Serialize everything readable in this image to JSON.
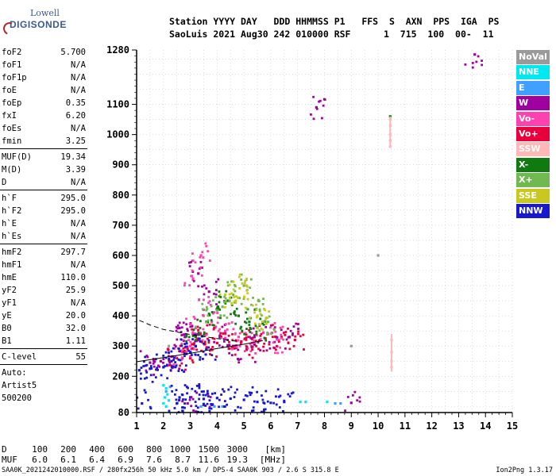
{
  "logo": {
    "line1": "Lowell",
    "line2": "DIGISONDE"
  },
  "header": {
    "line1": "Station YYYY DAY   DDD HHMMSS P1   FFS  S  AXN  PPS  IGA  PS",
    "line2": "SaoLuis 2021 Aug30 242 010000 RSF      1  715  100  00-  11"
  },
  "parameters": {
    "groups": [
      [
        {
          "name": "foF2",
          "value": "5.700"
        },
        {
          "name": "foF1",
          "value": "N/A"
        },
        {
          "name": "foF1p",
          "value": "N/A"
        },
        {
          "name": "foE",
          "value": "N/A"
        },
        {
          "name": "foEp",
          "value": "0.35"
        },
        {
          "name": "fxI",
          "value": "6.20"
        },
        {
          "name": "foEs",
          "value": "N/A"
        },
        {
          "name": "fmin",
          "value": "3.25"
        }
      ],
      [
        {
          "name": "MUF(D)",
          "value": "19.34"
        },
        {
          "name": "M(D)",
          "value": "3.39"
        },
        {
          "name": "D",
          "value": "N/A"
        }
      ],
      [
        {
          "name": "h`F",
          "value": "295.0"
        },
        {
          "name": "h`F2",
          "value": "295.0"
        },
        {
          "name": "h`E",
          "value": "N/A"
        },
        {
          "name": "h`Es",
          "value": "N/A"
        }
      ],
      [
        {
          "name": "hmF2",
          "value": "297.7"
        },
        {
          "name": "hmF1",
          "value": "N/A"
        },
        {
          "name": "hmE",
          "value": "110.0"
        },
        {
          "name": "yF2",
          "value": "25.9"
        },
        {
          "name": "yF1",
          "value": "N/A"
        },
        {
          "name": "yE",
          "value": "20.0"
        },
        {
          "name": "B0",
          "value": "32.0"
        },
        {
          "name": "B1",
          "value": "1.11"
        }
      ],
      [
        {
          "name": "C-level",
          "value": "55"
        }
      ]
    ],
    "notes": [
      "Auto:",
      "Artist5",
      "500200"
    ]
  },
  "legend": [
    {
      "label": "NoVal",
      "color": "#9a9a9a"
    },
    {
      "label": "NNE",
      "color": "#00e8f0"
    },
    {
      "label": "E",
      "color": "#40a0ff"
    },
    {
      "label": "W",
      "color": "#a000a0"
    },
    {
      "label": "Vo-",
      "color": "#ff40b0"
    },
    {
      "label": "Vo+",
      "color": "#e8003c"
    },
    {
      "label": "SSW",
      "color": "#ffb8b8"
    },
    {
      "label": "X-",
      "color": "#107a10"
    },
    {
      "label": "X+",
      "color": "#70b850"
    },
    {
      "label": "SSE",
      "color": "#c8c820"
    },
    {
      "label": "NNW",
      "color": "#1818d0"
    }
  ],
  "muf_table": {
    "d_label": "D",
    "muf_label": "MUF",
    "distances": [
      "100",
      "200",
      "400",
      "600",
      "800",
      "1000",
      "1500",
      "3000"
    ],
    "d_unit": "[km]",
    "mufs": [
      "6.0",
      "6.1",
      "6.4",
      "6.9",
      "7.6",
      "8.7",
      "11.6",
      "19.3"
    ],
    "muf_unit": "[MHz]"
  },
  "footer": {
    "left": "SAA0K_2021242010000.RSF / 280fx256h 50 kHz 5.0 km / DPS-4 SAA0K 903 / 2.6 S 315.8 E",
    "right": "Ion2Png 1.3.17"
  },
  "chart_data": {
    "type": "scatter",
    "title": "",
    "xlabel": "",
    "ylabel": "",
    "xlim": [
      1,
      15
    ],
    "ylim": [
      80,
      1280
    ],
    "x_ticks": [
      "1",
      "2",
      "3",
      "4",
      "5",
      "6",
      "7",
      "8",
      "9",
      "10",
      "11",
      "12",
      "13",
      "14",
      "15"
    ],
    "y_ticks": [
      "80",
      "200",
      "300",
      "400",
      "500",
      "600",
      "700",
      "800",
      "900",
      "1000",
      "1100",
      "1280"
    ],
    "grid": true,
    "series": [
      {
        "name": "NNE",
        "color": "#00e8f0",
        "points": [
          [
            2.0,
            110
          ],
          [
            2.05,
            130
          ],
          [
            2.1,
            160
          ],
          [
            2.0,
            170
          ],
          [
            2.15,
            140
          ],
          [
            2.2,
            120
          ],
          [
            2.1,
            100
          ],
          [
            7.1,
            115
          ],
          [
            7.3,
            115
          ],
          [
            8.1,
            115
          ]
        ]
      },
      {
        "name": "E",
        "color": "#40a0ff",
        "points": [
          [
            2.1,
            150
          ],
          [
            2.25,
            165
          ],
          [
            3.4,
            100
          ],
          [
            3.9,
            100
          ],
          [
            4.2,
            100
          ],
          [
            8.4,
            110
          ],
          [
            8.6,
            110
          ]
        ]
      },
      {
        "name": "W",
        "color": "#a000a0",
        "points": [
          [
            1.5,
            245
          ],
          [
            1.9,
            250
          ],
          [
            2.3,
            265
          ],
          [
            2.6,
            360
          ],
          [
            2.8,
            330
          ],
          [
            3.1,
            340
          ],
          [
            3.3,
            540
          ],
          [
            3.7,
            480
          ],
          [
            4.1,
            330
          ],
          [
            4.6,
            300
          ],
          [
            5.1,
            290
          ],
          [
            5.6,
            320
          ],
          [
            6.2,
            330
          ],
          [
            6.7,
            330
          ],
          [
            7.7,
            1090
          ],
          [
            13.6,
            1265
          ],
          [
            9.0,
            112
          ],
          [
            2.9,
            110
          ],
          [
            3.5,
            105
          ]
        ]
      },
      {
        "name": "Vo-",
        "color": "#ff40b0",
        "points": [
          [
            2.7,
            280
          ],
          [
            3.0,
            300
          ],
          [
            3.2,
            360
          ],
          [
            3.5,
            420
          ],
          [
            3.8,
            380
          ],
          [
            4.3,
            350
          ],
          [
            4.8,
            330
          ],
          [
            5.3,
            310
          ],
          [
            5.9,
            340
          ],
          [
            6.3,
            320
          ],
          [
            3.4,
            600
          ],
          [
            3.1,
            520
          ]
        ]
      },
      {
        "name": "Vo+",
        "color": "#e8003c",
        "points": [
          [
            2.5,
            260
          ],
          [
            2.9,
            290
          ],
          [
            3.3,
            320
          ],
          [
            3.6,
            340
          ],
          [
            4.0,
            310
          ],
          [
            4.4,
            300
          ],
          [
            4.9,
            315
          ],
          [
            5.4,
            305
          ],
          [
            5.8,
            325
          ],
          [
            6.4,
            330
          ],
          [
            6.9,
            320
          ]
        ]
      },
      {
        "name": "SSW",
        "color": "#ffb8b8",
        "points": [
          [
            10.45,
            980
          ],
          [
            10.45,
            1000
          ],
          [
            10.45,
            1030
          ],
          [
            10.45,
            1050
          ],
          [
            10.5,
            250
          ],
          [
            10.5,
            280
          ],
          [
            10.5,
            320
          ],
          [
            10.45,
            960
          ],
          [
            10.5,
            230
          ]
        ]
      },
      {
        "name": "X-",
        "color": "#107a10",
        "points": [
          [
            3.2,
            330
          ],
          [
            3.6,
            380
          ],
          [
            4.0,
            420
          ],
          [
            4.4,
            450
          ],
          [
            4.8,
            400
          ],
          [
            5.2,
            380
          ],
          [
            5.5,
            360
          ],
          [
            10.45,
            1060
          ]
        ]
      },
      {
        "name": "X+",
        "color": "#70b850",
        "points": [
          [
            3.5,
            400
          ],
          [
            4.2,
            430
          ],
          [
            4.6,
            470
          ],
          [
            5.0,
            500
          ],
          [
            5.4,
            420
          ],
          [
            5.9,
            380
          ]
        ]
      },
      {
        "name": "SSE",
        "color": "#c8c820",
        "points": [
          [
            4.3,
            470
          ],
          [
            4.8,
            460
          ],
          [
            5.1,
            500
          ],
          [
            5.5,
            400
          ],
          [
            5.7,
            380
          ]
        ]
      },
      {
        "name": "NNW",
        "color": "#1818d0",
        "points": [
          [
            1.1,
            220
          ],
          [
            1.5,
            225
          ],
          [
            2.0,
            230
          ],
          [
            2.3,
            250
          ],
          [
            2.7,
            260
          ],
          [
            3.0,
            280
          ],
          [
            3.2,
            300
          ],
          [
            3.6,
            290
          ],
          [
            2.6,
            130
          ],
          [
            3.0,
            130
          ],
          [
            3.5,
            125
          ],
          [
            4.0,
            128
          ],
          [
            4.5,
            126
          ],
          [
            5.0,
            122
          ],
          [
            5.5,
            115
          ],
          [
            6.0,
            112
          ],
          [
            6.5,
            115
          ],
          [
            1.2,
            110
          ],
          [
            2.5,
            110
          ],
          [
            3.5,
            108
          ]
        ]
      },
      {
        "name": "NoVal",
        "color": "#9a9a9a",
        "points": [
          [
            2.2,
            300
          ],
          [
            9.0,
            300
          ],
          [
            10.0,
            600
          ]
        ]
      }
    ],
    "traces": [
      {
        "name": "",
        "color": "#000000",
        "style": "solid",
        "points": [
          [
            1.0,
            248
          ],
          [
            2.0,
            262
          ],
          [
            3.0,
            276
          ],
          [
            4.0,
            292
          ],
          [
            5.0,
            306
          ],
          [
            5.7,
            318
          ]
        ]
      },
      {
        "name": "",
        "color": "#000000",
        "style": "dashed",
        "points": [
          [
            1.1,
            385
          ],
          [
            1.5,
            370
          ],
          [
            2.0,
            355
          ],
          [
            2.6,
            345
          ],
          [
            3.2,
            335
          ],
          [
            4.0,
            325
          ],
          [
            4.8,
            315
          ]
        ]
      }
    ]
  }
}
